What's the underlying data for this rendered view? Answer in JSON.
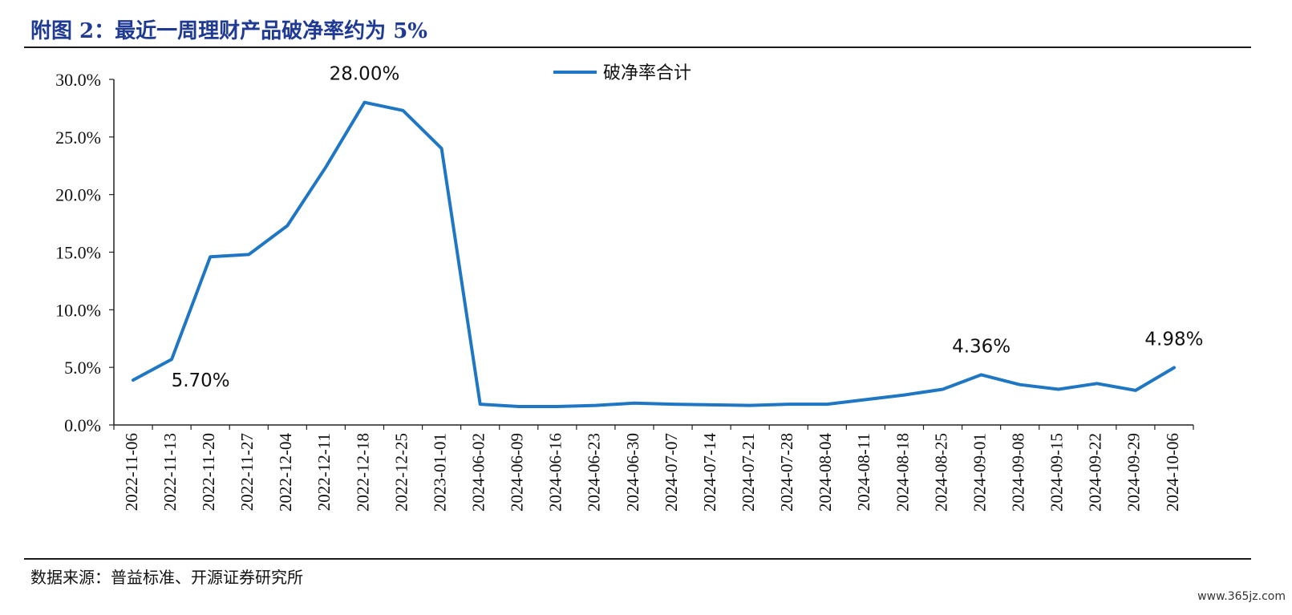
{
  "title": "附图 2：最近一周理财产品破净率约为 5%",
  "source": "数据来源：普益标准、开源证券研究所",
  "watermark": "www.365jz.com",
  "colors": {
    "line": "#1f77c4",
    "title": "#1f3a93"
  },
  "chart_data": {
    "type": "line",
    "title": "附图 2：最近一周理财产品破净率约为 5%",
    "xlabel": "",
    "ylabel": "",
    "ylim": [
      0,
      30
    ],
    "yticks": [
      "0.0%",
      "5.0%",
      "10.0%",
      "15.0%",
      "20.0%",
      "25.0%",
      "30.0%"
    ],
    "grid": false,
    "legend": "top-center",
    "categories": [
      "2022-11-06",
      "2022-11-13",
      "2022-11-20",
      "2022-11-27",
      "2022-12-04",
      "2022-12-11",
      "2022-12-18",
      "2022-12-25",
      "2023-01-01",
      "2024-06-02",
      "2024-06-09",
      "2024-06-16",
      "2024-06-23",
      "2024-06-30",
      "2024-07-07",
      "2024-07-14",
      "2024-07-21",
      "2024-07-28",
      "2024-08-04",
      "2024-08-11",
      "2024-08-18",
      "2024-08-25",
      "2024-09-01",
      "2024-09-08",
      "2024-09-15",
      "2024-09-22",
      "2024-09-29",
      "2024-10-06"
    ],
    "series": [
      {
        "name": "破净率合计",
        "values": [
          3.9,
          5.7,
          14.6,
          14.8,
          17.3,
          22.4,
          28.0,
          27.3,
          24.0,
          1.8,
          1.6,
          1.6,
          1.7,
          1.9,
          1.8,
          1.75,
          1.7,
          1.8,
          1.8,
          2.2,
          2.6,
          3.1,
          4.36,
          3.5,
          3.1,
          3.6,
          3.0,
          4.98
        ]
      }
    ],
    "annotations": [
      {
        "index": 1,
        "text": "5.70%"
      },
      {
        "index": 6,
        "text": "28.00%"
      },
      {
        "index": 22,
        "text": "4.36%"
      },
      {
        "index": 27,
        "text": "4.98%"
      }
    ]
  }
}
